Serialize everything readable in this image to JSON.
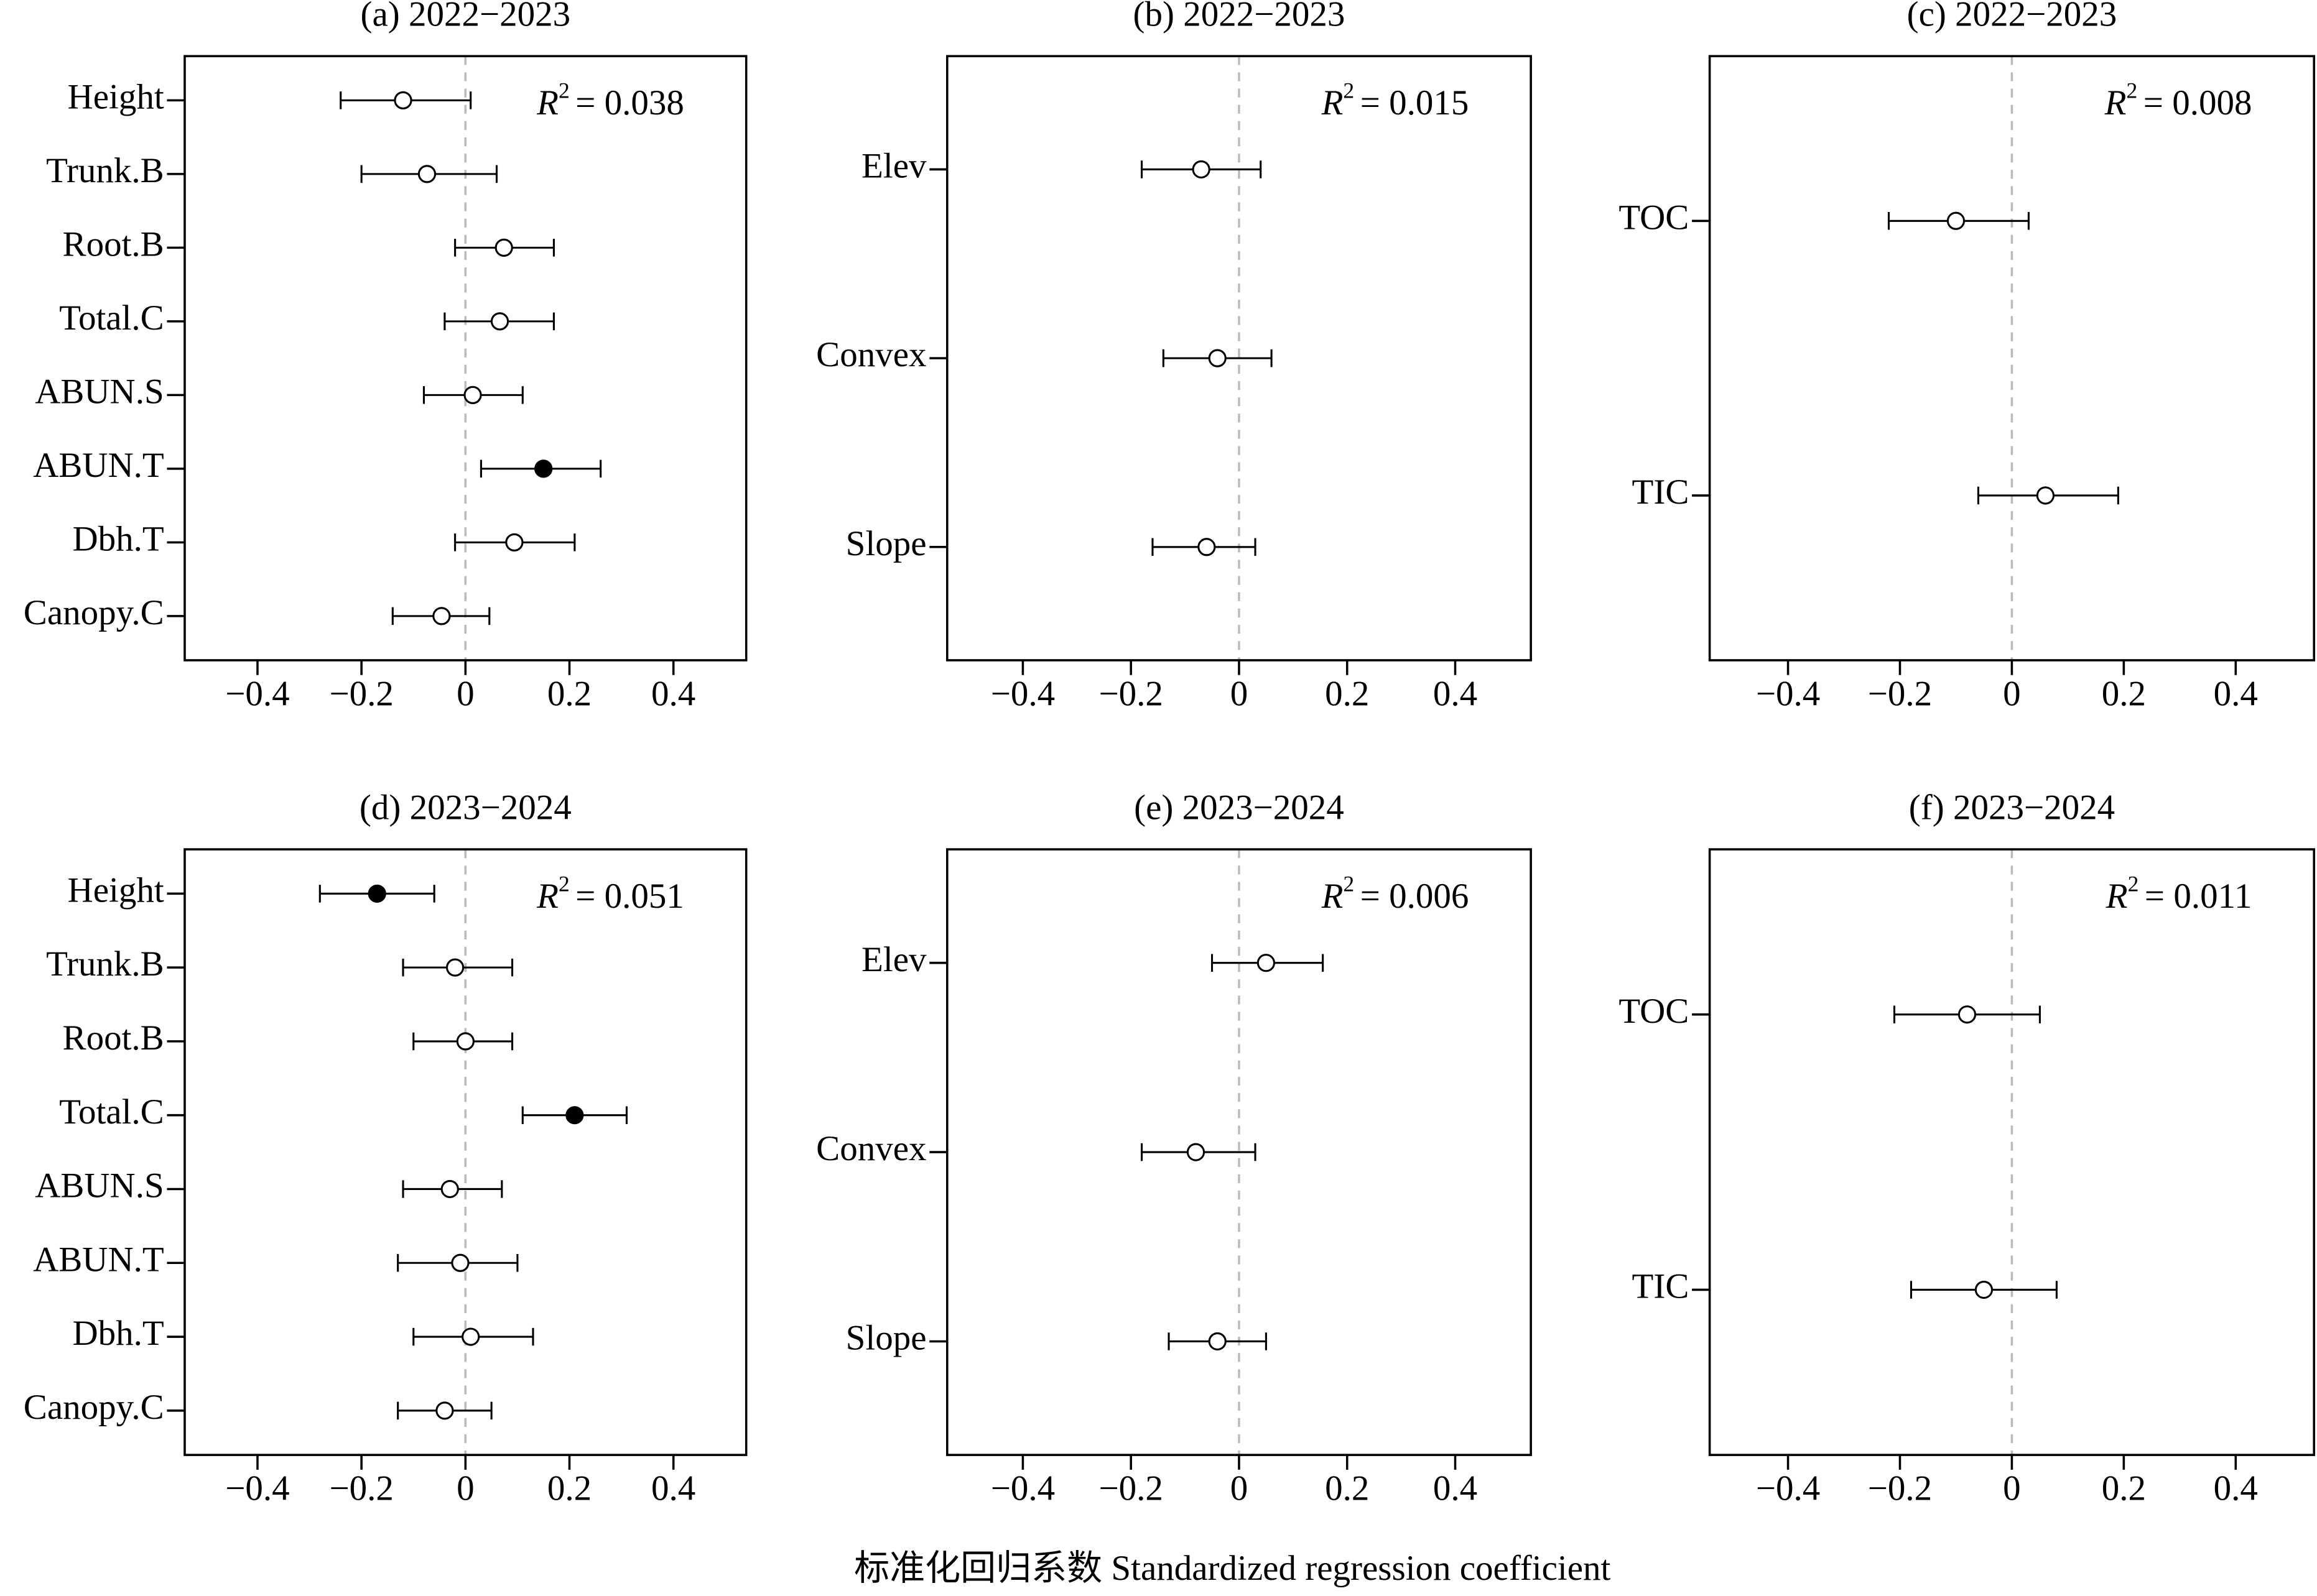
{
  "xlabel": "标准化回归系数 Standardized regression coefficient",
  "chart_data": [
    {
      "type": "forest",
      "title": "(a) 2022−2023",
      "color": "#000000",
      "xlim": [
        -0.54,
        0.54
      ],
      "xticks": [
        {
          "value": -0.4,
          "label": "−0.4"
        },
        {
          "value": -0.2,
          "label": "−0.2"
        },
        0,
        0.2,
        0.4
      ],
      "categories": [
        "Height",
        "Trunk.B",
        "Root.B",
        "Total.C",
        "ABUN.S",
        "ABUN.T",
        "Dbh.T",
        "Canopy.C"
      ],
      "values": [
        -0.12,
        -0.074,
        0.074,
        0.066,
        0.014,
        0.15,
        0.094,
        -0.046
      ],
      "lower": [
        -0.24,
        -0.2,
        -0.02,
        -0.04,
        -0.08,
        0.03,
        -0.02,
        -0.14
      ],
      "upper": [
        0.01,
        0.06,
        0.17,
        0.17,
        0.11,
        0.26,
        0.21,
        0.046
      ],
      "filled": [
        false,
        false,
        false,
        false,
        false,
        true,
        false,
        false
      ],
      "r_label": "R",
      "r_power": "2",
      "r_eq": "=",
      "r_squared": 0.038
    },
    {
      "type": "forest",
      "title": "(b) 2022−2023",
      "color": "#000000",
      "xlim": [
        -0.54,
        0.54
      ],
      "xticks": [
        {
          "value": -0.4,
          "label": "−0.4"
        },
        {
          "value": -0.2,
          "label": "−0.2"
        },
        0,
        0.2,
        0.4
      ],
      "categories": [
        "Elev",
        "Convex",
        "Slope"
      ],
      "values": [
        -0.07,
        -0.04,
        -0.06
      ],
      "lower": [
        -0.18,
        -0.14,
        -0.16
      ],
      "upper": [
        0.04,
        0.06,
        0.03
      ],
      "filled": [
        false,
        false,
        false
      ],
      "r_label": "R",
      "r_power": "2",
      "r_eq": "=",
      "r_squared": 0.015
    },
    {
      "type": "forest",
      "title": "(c) 2022−2023",
      "color": "#000000",
      "xlim": [
        -0.54,
        0.54
      ],
      "xticks": [
        {
          "value": -0.4,
          "label": "−0.4"
        },
        {
          "value": -0.2,
          "label": "−0.2"
        },
        0,
        0.2,
        0.4
      ],
      "categories": [
        "TOC",
        "TIC"
      ],
      "values": [
        -0.1,
        0.06
      ],
      "lower": [
        -0.22,
        -0.06
      ],
      "upper": [
        0.03,
        0.19
      ],
      "filled": [
        false,
        false
      ],
      "r_label": "R",
      "r_power": "2",
      "r_eq": "=",
      "r_squared": 0.008
    },
    {
      "type": "forest",
      "title": "(d) 2023−2024",
      "color": "#000000",
      "xlim": [
        -0.54,
        0.54
      ],
      "xticks": [
        {
          "value": -0.4,
          "label": "−0.4"
        },
        {
          "value": -0.2,
          "label": "−0.2"
        },
        0,
        0.2,
        0.4
      ],
      "categories": [
        "Height",
        "Trunk.B",
        "Root.B",
        "Total.C",
        "ABUN.S",
        "ABUN.T",
        "Dbh.T",
        "Canopy.C"
      ],
      "values": [
        -0.17,
        -0.02,
        0,
        0.21,
        -0.03,
        -0.01,
        0.01,
        -0.04
      ],
      "lower": [
        -0.28,
        -0.12,
        -0.1,
        0.11,
        -0.12,
        -0.13,
        -0.1,
        -0.13
      ],
      "upper": [
        -0.06,
        0.09,
        0.09,
        0.31,
        0.07,
        0.1,
        0.13,
        0.05
      ],
      "filled": [
        true,
        false,
        false,
        true,
        false,
        false,
        false,
        false
      ],
      "r_label": "R",
      "r_power": "2",
      "r_eq": "=",
      "r_squared": 0.051
    },
    {
      "type": "forest",
      "title": "(e) 2023−2024",
      "color": "#000000",
      "xlim": [
        -0.54,
        0.54
      ],
      "xticks": [
        {
          "value": -0.4,
          "label": "−0.4"
        },
        {
          "value": -0.2,
          "label": "−0.2"
        },
        0,
        0.2,
        0.4
      ],
      "categories": [
        "Elev",
        "Convex",
        "Slope"
      ],
      "values": [
        0.05,
        -0.08,
        -0.04
      ],
      "lower": [
        -0.05,
        -0.18,
        -0.13
      ],
      "upper": [
        0.155,
        0.03,
        0.05
      ],
      "filled": [
        false,
        false,
        false
      ],
      "r_label": "R",
      "r_power": "2",
      "r_eq": "=",
      "r_squared": 0.006
    },
    {
      "type": "forest",
      "title": "(f) 2023−2024",
      "color": "#000000",
      "xlim": [
        -0.54,
        0.54
      ],
      "xticks": [
        {
          "value": -0.4,
          "label": "−0.4"
        },
        {
          "value": -0.2,
          "label": "−0.2"
        },
        0,
        0.2,
        0.4
      ],
      "categories": [
        "TOC",
        "TIC"
      ],
      "values": [
        -0.08,
        -0.05
      ],
      "lower": [
        -0.21,
        -0.18
      ],
      "upper": [
        0.05,
        0.08
      ],
      "filled": [
        false,
        false
      ],
      "r_label": "R",
      "r_power": "2",
      "r_eq": "=",
      "r_squared": 0.011
    }
  ]
}
